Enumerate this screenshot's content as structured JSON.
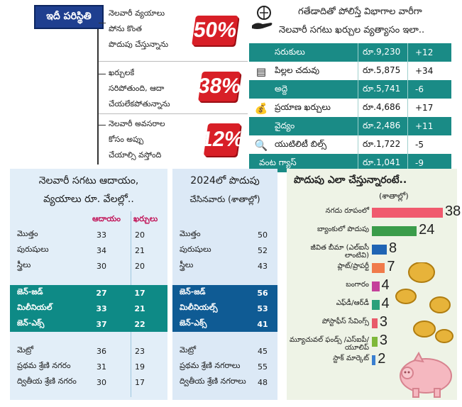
{
  "situation": {
    "tag": "ఇదీ పరిస్థితి",
    "items": [
      {
        "lines": [
          "నెలవారీ వ్యయాలు",
          "పోను కొంత",
          "పొదుపు చేస్తున్నాను"
        ],
        "percent": "50%"
      },
      {
        "lines": [
          "ఖర్చులకే",
          "సరిపోతుంది, ఆదా",
          "చేయలేకపోతున్నాను"
        ],
        "percent": "38%"
      },
      {
        "lines": [
          "నెలవారీ అవసరాల",
          "కోసం అప్పు",
          "చేయాల్సి వస్తోంది"
        ],
        "percent": "12%"
      }
    ]
  },
  "expenses": {
    "header_line1": "గతేడాదితో పోలిస్తే విభాగాల వారీగా",
    "header_line2": "నెలవారీ సగటు ఖర్చుల వ్యత్యాసం ఇలా..",
    "icons": {
      "header": "globe-hand-icon",
      "education": "books-icon",
      "travel": "money-bag-icon",
      "utility": "bill-search-icon"
    },
    "rows": [
      {
        "name": "సరుకులు",
        "amount": "రూ.9,230",
        "change": "+12"
      },
      {
        "name": "పిల్లల చదువు",
        "amount": "రూ.5,875",
        "change": "+34"
      },
      {
        "name": "అద్దె",
        "amount": "రూ.5,741",
        "change": "-6"
      },
      {
        "name": "ప్రయాణ ఖర్చులు",
        "amount": "రూ.4,686",
        "change": "+17"
      },
      {
        "name": "వైద్యం",
        "amount": "రూ.2,486",
        "change": "+11"
      },
      {
        "name": "యుటిలిటీ బిల్స్",
        "amount": "రూ.1,722",
        "change": "-5"
      },
      {
        "name": "వంట గ్యాస్",
        "amount": "రూ.1,041",
        "change": "-9"
      }
    ]
  },
  "income_table": {
    "title_line1": "నెలవారీ సగటు ఆదాయం,",
    "title_line2": "వ్యయాలు రూ. వేలల్లో..",
    "col_income": "ఆదాయం",
    "col_expense": "ఖర్చులు",
    "rows": [
      {
        "name": "మొత్తం",
        "income": "33",
        "expense": "20"
      },
      {
        "name": "పురుషులు",
        "income": "34",
        "expense": "21"
      },
      {
        "name": "స్త్రీలు",
        "income": "30",
        "expense": "20"
      },
      {
        "name": "జెన్‌-జడ్‌",
        "income": "27",
        "expense": "17"
      },
      {
        "name": "మిలీనియల్‌",
        "income": "33",
        "expense": "21"
      },
      {
        "name": "జెన్‌-ఎక్స్‌",
        "income": "37",
        "expense": "22"
      },
      {
        "name": "మెట్రో",
        "income": "36",
        "expense": "23"
      },
      {
        "name": "ప్రథమ శ్రేణి నగరం",
        "income": "31",
        "expense": "19"
      },
      {
        "name": "ద్వితీయ శ్రేణి నగరం",
        "income": "30",
        "expense": "17"
      }
    ]
  },
  "savers_table": {
    "title_line1": "2024లో పొదుపు",
    "title_line2": "చేసినవారు (శాతాల్లో)",
    "rows": [
      {
        "name": "మొత్తం",
        "value": "50"
      },
      {
        "name": "పురుషులు",
        "value": "52"
      },
      {
        "name": "స్త్రీలు",
        "value": "43"
      },
      {
        "name": "జెన్‌-జడ్‌",
        "value": "56"
      },
      {
        "name": "మిలీనియల్స్‌",
        "value": "53"
      },
      {
        "name": "జెన్‌-ఎక్స్‌",
        "value": "41"
      },
      {
        "name": "మెట్రో",
        "value": "45"
      },
      {
        "name": "ప్రథమ శ్రేణి నగరాలు",
        "value": "55"
      },
      {
        "name": "ద్వితీయ శ్రేణి నగరాలు",
        "value": "48"
      }
    ]
  },
  "chart_data": {
    "type": "bar",
    "title": "పొదుపు ఎలా చేస్తున్నారంటే..",
    "subtitle": "(శాతాల్లో)",
    "categories": [
      "నగదు రూపంలో",
      "బ్యాంకులో పొదుపు",
      "జీవిత బీమా (ఎల్‌ఐసీ లాంటివి)",
      "ప్లాట్‌/ప్రాపర్టీ",
      "బంగారం",
      "ఎఫ్‌డీ/ఆర్‌డీ",
      "పోస్టాఫీస్‌ సేవింగ్స్‌",
      "మ్యూచువల్‌ ఫండ్స్‌ /ఎస్‌ఐపీ/యూలిప్‌",
      "స్టాక్‌ మార్కెట్‌"
    ],
    "values": [
      38,
      24,
      8,
      7,
      4,
      4,
      3,
      3,
      2
    ],
    "value_labels": [
      "38",
      "24",
      "8",
      "7",
      "4",
      "4",
      "3",
      "3",
      "2"
    ],
    "colors": [
      "#f05a6e",
      "#3a9c4a",
      "#1f64b4",
      "#f07a4a",
      "#c4409a",
      "#2aa07a",
      "#e85a6a",
      "#7fb83a",
      "#3a7fd0"
    ],
    "xlim": [
      0,
      38
    ]
  }
}
